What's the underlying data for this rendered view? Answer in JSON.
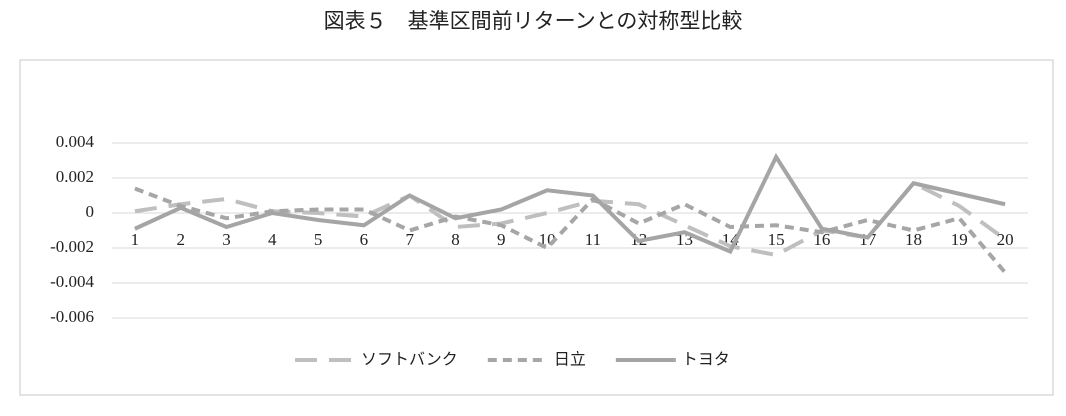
{
  "chart_data": {
    "type": "line",
    "title": "図表５　基準区間前リターンとの対称型比較",
    "categories": [
      "1",
      "2",
      "3",
      "4",
      "5",
      "6",
      "7",
      "8",
      "9",
      "10",
      "11",
      "12",
      "13",
      "14",
      "15",
      "16",
      "17",
      "18",
      "19",
      "20"
    ],
    "series": [
      {
        "name": "ソフトバンク",
        "color": "#bfbfbf",
        "dash": "long",
        "values": [
          0.0001,
          0.0005,
          0.0008,
          0.0001,
          0,
          -0.0002,
          0.001,
          -0.0008,
          -0.0006,
          0,
          0.0007,
          0.0005,
          -0.0007,
          -0.0019,
          -0.0024,
          -0.001,
          -0.0014,
          0.0017,
          0.0004,
          -0.0015
        ]
      },
      {
        "name": "日立",
        "color": "#a6a6a6",
        "dash": "short",
        "values": [
          0.0014,
          0.0004,
          -0.0003,
          0.0001,
          0.0002,
          0.0002,
          -0.001,
          -0.0002,
          -0.0007,
          -0.002,
          0.0008,
          -0.0006,
          0.0005,
          -0.0008,
          -0.0007,
          -0.0011,
          -0.0004,
          -0.001,
          -0.0003,
          -0.0034
        ]
      },
      {
        "name": "トヨタ",
        "color": "#a5a5a5",
        "dash": "solid",
        "values": [
          -0.0009,
          0.0003,
          -0.0008,
          0,
          -0.0004,
          -0.0007,
          0.001,
          -0.0003,
          0.0002,
          0.0013,
          0.001,
          -0.0016,
          -0.0011,
          -0.0022,
          0.0032,
          -0.0009,
          -0.0014,
          0.0017,
          0.0011,
          0.0005
        ]
      }
    ],
    "ylim": [
      -0.006,
      0.004
    ],
    "yticks": [
      -0.006,
      -0.004,
      -0.002,
      0,
      0.002,
      0.004
    ],
    "grid": true,
    "legend": "bottom"
  }
}
